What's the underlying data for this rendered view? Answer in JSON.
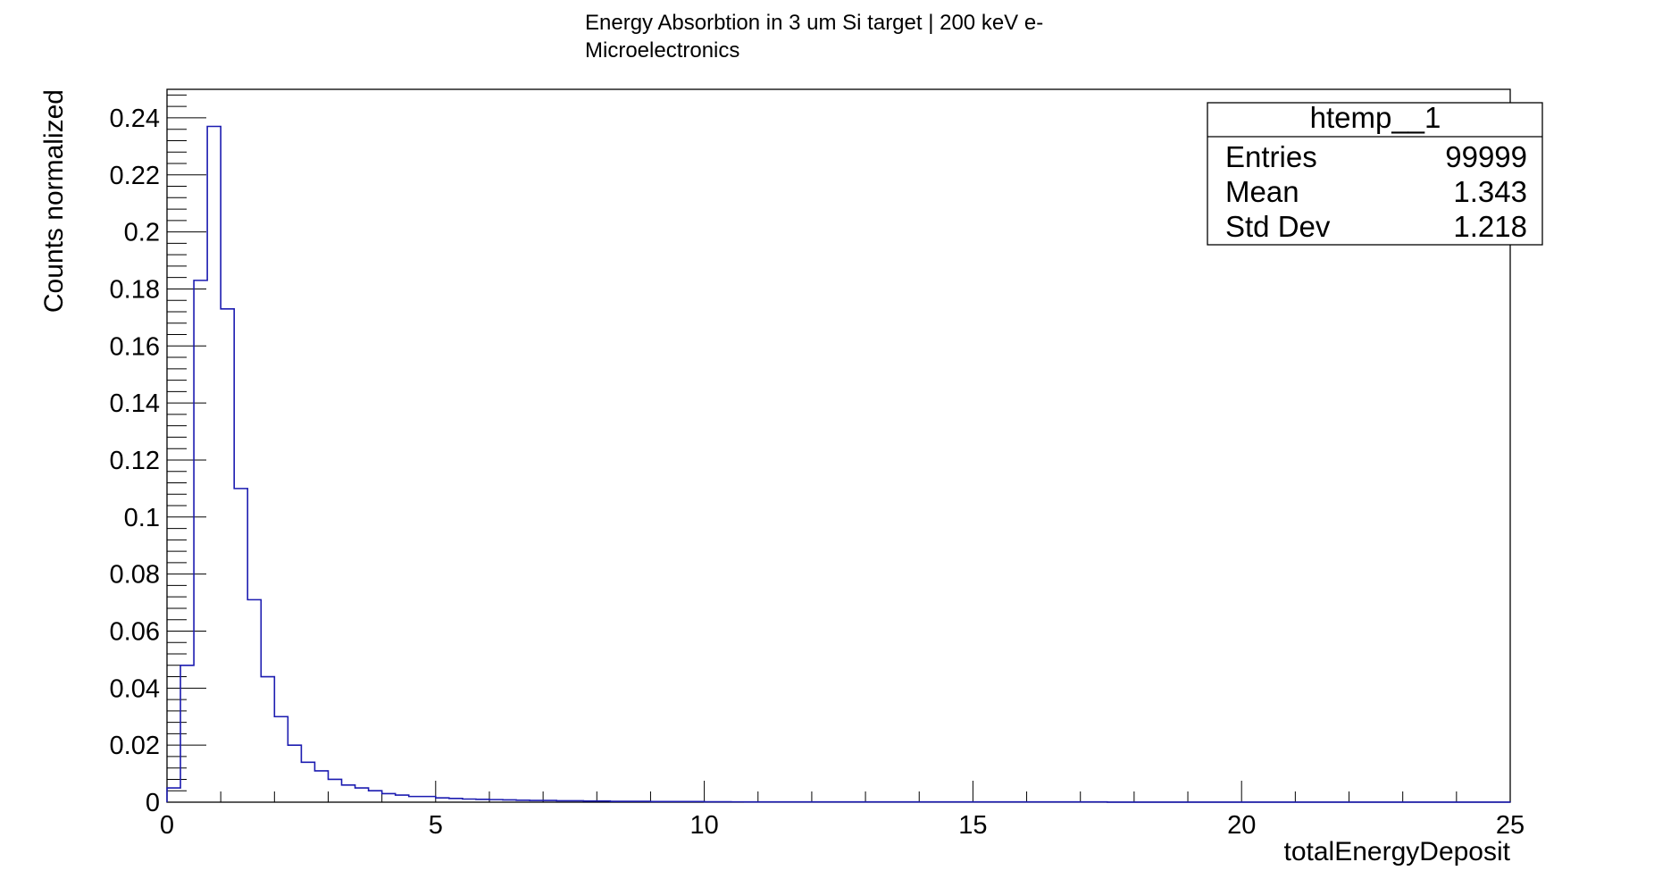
{
  "chart_data": {
    "type": "histogram",
    "title_lines": [
      "Energy Absorbtion in 3 um Si target | 200 keV e-",
      "Microelectronics"
    ],
    "xlabel": "totalEnergyDeposit",
    "ylabel": "Counts normalized",
    "xlim": [
      0,
      25
    ],
    "ylim": [
      0,
      0.25
    ],
    "x_tick_labels": [
      "0",
      "5",
      "10",
      "15",
      "20",
      "25"
    ],
    "y_tick_labels": [
      "0",
      "0.02",
      "0.04",
      "0.06",
      "0.08",
      "0.1",
      "0.12",
      "0.14",
      "0.16",
      "0.18",
      "0.2",
      "0.22",
      "0.24"
    ],
    "bin_width": 0.25,
    "bin_values": [
      0.005,
      0.048,
      0.183,
      0.237,
      0.173,
      0.11,
      0.071,
      0.044,
      0.03,
      0.02,
      0.014,
      0.011,
      0.008,
      0.006,
      0.005,
      0.004,
      0.003,
      0.0025,
      0.002,
      0.002,
      0.0015,
      0.0013,
      0.0011,
      0.001,
      0.0009,
      0.0008,
      0.0007,
      0.0006,
      0.0006,
      0.0005,
      0.0005,
      0.0004,
      0.0004,
      0.0003,
      0.0003,
      0.0003,
      0.0002,
      0.0002,
      0.0002,
      0.0002,
      0.00015,
      0.00015,
      0.00012,
      0.0001,
      0.0001,
      0.0001,
      0.0001,
      0.0001,
      0.0001,
      0.0001,
      0.0001,
      0.0001,
      0.0001,
      0.0001,
      0.0001,
      0.0001,
      0.0001,
      0.0001,
      0.0001,
      0.0001,
      0.0001,
      0.0001,
      0.0001,
      0.0001,
      0.0001,
      0.0001,
      0.0001,
      0.0001,
      0.0001,
      0.0001,
      3e-05,
      3e-05,
      3e-05,
      3e-05,
      3e-05,
      3e-05,
      3e-05,
      3e-05,
      3e-05,
      3e-05,
      3e-05,
      3e-05,
      3e-05,
      3e-05,
      3e-05,
      3e-05,
      3e-05,
      3e-05,
      3e-05,
      3e-05,
      3e-05,
      3e-05,
      3e-05,
      3e-05,
      3e-05,
      3e-05,
      3e-05,
      3e-05,
      3e-05,
      3e-05
    ],
    "line_color": "#1b1bb0",
    "grid": false,
    "stats_box": {
      "name": "htemp__1",
      "rows": [
        {
          "label": "Entries",
          "value": "99999"
        },
        {
          "label": "Mean",
          "value": "1.343"
        },
        {
          "label": "Std Dev",
          "value": "1.218"
        }
      ]
    }
  }
}
